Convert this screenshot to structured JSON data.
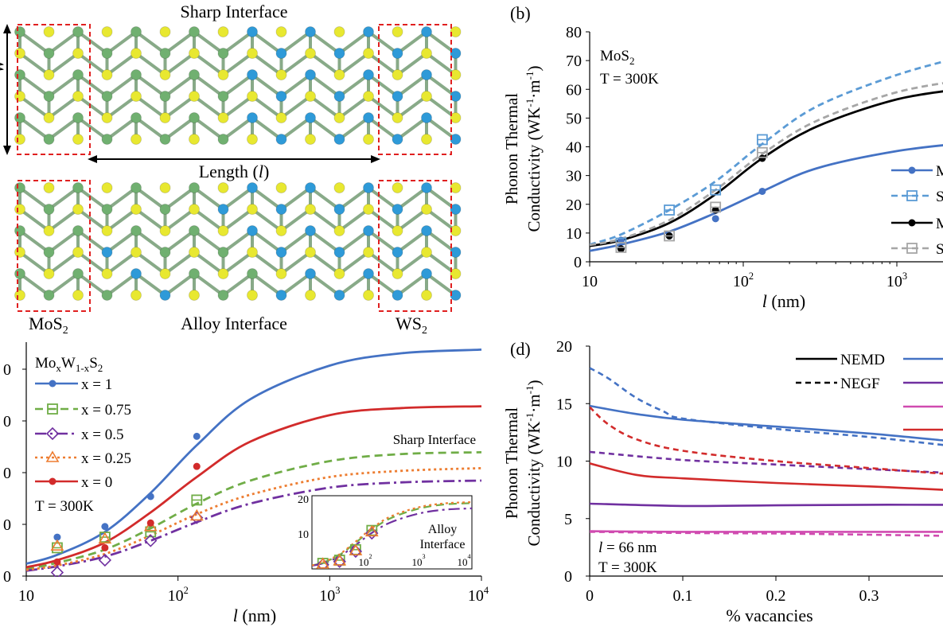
{
  "colors": {
    "blue": "#4472C4",
    "light_blue": "#5B9BD5",
    "red": "#D22B2B",
    "green": "#70AD47",
    "purple": "#7030A0",
    "orange": "#ED7D31",
    "gray": "#A6A6A6",
    "pink": "#D04BB0",
    "mo_atom": "#70B070",
    "w_atom": "#2E9AD8",
    "s_atom": "#E8E830",
    "box": "#E02020"
  },
  "panel_a": {
    "title_sharp": "Sharp Interface",
    "title_alloy": "Alloy Interface",
    "width_label": "W",
    "length_label_pre": "Length (",
    "length_label_var": "l",
    "length_label_post": ")",
    "mos2_base": "MoS",
    "mos2_sub": "2",
    "ws2_base": "WS",
    "ws2_sub": "2"
  },
  "chart_data": [
    {
      "id": "b",
      "panel_label": "(b)",
      "type": "line",
      "xscale": "log",
      "xlim": [
        10,
        3000
      ],
      "ylim": [
        0,
        80
      ],
      "xticks": [
        "10",
        "10",
        "10"
      ],
      "xtick_exps": [
        "",
        "2",
        "3"
      ],
      "yticks": [
        "0",
        "10",
        "20",
        "30",
        "40",
        "50",
        "60",
        "70",
        "80"
      ],
      "ylabel_line1": "Phonon Thermal",
      "ylabel_line2": "Conductivity (WK",
      "ylabel_sup1": "-1",
      "ylabel_mid": "·m",
      "ylabel_sup2": "-1",
      "ylabel_end": ")",
      "xlabel_var": "l",
      "xlabel_unit": " (nm)",
      "annot_material_base": "MoS",
      "annot_material_sub": "2",
      "annot_temp": "T = 300K",
      "legend_labels": [
        "M",
        "S",
        "M",
        "S"
      ],
      "series": [
        {
          "style": "blue_solid",
          "x": [
            10,
            16,
            33,
            66,
            133,
            300,
            1000,
            3000
          ],
          "y": [
            3.8,
            6,
            10.5,
            17,
            24.5,
            32.5,
            38.5,
            41.5
          ]
        },
        {
          "style": "lightblue_dash",
          "x": [
            10,
            16,
            33,
            66,
            133,
            300,
            1000,
            3000
          ],
          "y": [
            6,
            9.5,
            18,
            28,
            41,
            54,
            65,
            72
          ]
        },
        {
          "style": "black_solid",
          "x": [
            10,
            16,
            33,
            66,
            133,
            300,
            1000,
            3000
          ],
          "y": [
            5.5,
            7.5,
            13.5,
            23.5,
            36,
            47,
            56.5,
            60.5
          ]
        },
        {
          "style": "gray_dash",
          "x": [
            10,
            16,
            33,
            66,
            133,
            300,
            1000,
            3000
          ],
          "y": [
            5.8,
            8,
            14.5,
            25,
            37.5,
            49,
            59,
            63.5
          ]
        }
      ],
      "markers": [
        {
          "style": "blue_dot",
          "x": [
            16,
            33,
            66,
            133
          ],
          "y": [
            7.5,
            9,
            15,
            24.5
          ]
        },
        {
          "style": "lightblue_sq",
          "x": [
            16,
            33,
            66,
            133
          ],
          "y": [
            6.5,
            18,
            25,
            42.5
          ]
        },
        {
          "style": "black_dot",
          "x": [
            16,
            33,
            66,
            133
          ],
          "y": [
            4.5,
            9,
            18,
            36
          ]
        },
        {
          "style": "gray_sq",
          "x": [
            16,
            33,
            66,
            133
          ],
          "y": [
            5,
            9,
            19,
            38
          ]
        }
      ]
    },
    {
      "id": "c",
      "type": "line",
      "xscale": "log",
      "xlim": [
        10,
        10000
      ],
      "ylim": [
        0,
        13
      ],
      "xticks": [
        "10",
        "10",
        "10",
        "10"
      ],
      "xtick_exps": [
        "",
        "2",
        "3",
        "4"
      ],
      "yticks": [
        "0",
        "0",
        "0",
        "0",
        "0"
      ],
      "xlabel_var": "l",
      "xlabel_unit": " (nm)",
      "annot_material": "Mo",
      "annot_x": "x",
      "annot_w": "W",
      "annot_1mx": "1-x",
      "annot_s": "S",
      "annot_2": "2",
      "annot_temp": "T = 300K",
      "annot_sharp": "Sharp Interface",
      "legend_labels": [
        "x = 1",
        "x = 0.75",
        "x = 0.5",
        "x = 0.25",
        "x = 0"
      ],
      "series": [
        {
          "name": "x = 1",
          "x": [
            10,
            16,
            33,
            66,
            133,
            300,
            1000,
            3000,
            10000
          ],
          "y": [
            0.7,
            1.2,
            2.5,
            4.7,
            7.4,
            10,
            11.9,
            12.6,
            12.8
          ]
        },
        {
          "name": "x = 0.75",
          "x": [
            10,
            16,
            33,
            66,
            133,
            300,
            1000,
            3000,
            10000
          ],
          "y": [
            0.4,
            0.75,
            1.5,
            2.7,
            4.1,
            5.4,
            6.5,
            6.9,
            7.0
          ]
        },
        {
          "name": "x = 0.5",
          "x": [
            10,
            16,
            33,
            66,
            133,
            300,
            1000,
            3000,
            10000
          ],
          "y": [
            0.3,
            0.55,
            1.1,
            2.0,
            3.05,
            4.1,
            5.0,
            5.3,
            5.4
          ]
        },
        {
          "name": "x = 0.25",
          "x": [
            10,
            16,
            33,
            66,
            133,
            300,
            1000,
            3000,
            10000
          ],
          "y": [
            0.35,
            0.6,
            1.25,
            2.3,
            3.5,
            4.6,
            5.6,
            5.95,
            6.1
          ]
        },
        {
          "name": "x = 0",
          "x": [
            10,
            16,
            33,
            66,
            133,
            300,
            1000,
            3000,
            10000
          ],
          "y": [
            0.5,
            0.9,
            1.9,
            3.6,
            5.6,
            7.6,
            9.1,
            9.5,
            9.6
          ]
        }
      ],
      "markers": [
        {
          "name": "x = 1",
          "x": [
            16,
            33,
            66,
            133
          ],
          "y": [
            2.2,
            2.8,
            4.5,
            7.9
          ]
        },
        {
          "name": "x = 0.75",
          "x": [
            16,
            33,
            66,
            133
          ],
          "y": [
            1.6,
            2.2,
            2.5,
            4.3
          ]
        },
        {
          "name": "x = 0.5",
          "x": [
            16,
            33,
            66,
            133
          ],
          "y": [
            0.2,
            0.9,
            2.0,
            3.3
          ]
        },
        {
          "name": "x = 0.25",
          "x": [
            16,
            33,
            66,
            133
          ],
          "y": [
            1.7,
            2.1,
            2.8,
            3.4
          ]
        },
        {
          "name": "x = 0",
          "x": [
            16,
            33,
            66,
            133
          ],
          "y": [
            0.8,
            1.6,
            3.0,
            6.2
          ]
        }
      ],
      "inset": {
        "xlim": [
          10,
          10000
        ],
        "ylim": [
          0,
          20
        ],
        "yticks": [
          "10",
          "20"
        ],
        "xticks": [
          "10",
          "10",
          "10"
        ],
        "xtick_exps": [
          "2",
          "3",
          "4"
        ],
        "label_line1": "Alloy",
        "label_line2": "Interface",
        "series": [
          {
            "name": "x = 0.75",
            "x": [
              10,
              16,
              33,
              66,
              133,
              300,
              1000,
              3000,
              10000
            ],
            "y": [
              1,
              1.8,
              4,
              7.5,
              11.2,
              14.5,
              17.2,
              18.4,
              18.8
            ]
          },
          {
            "name": "x = 0.5",
            "x": [
              10,
              16,
              33,
              66,
              133,
              300,
              1000,
              3000,
              10000
            ],
            "y": [
              0.9,
              1.6,
              3.6,
              6.8,
              10.3,
              13.3,
              15.8,
              16.9,
              17.3
            ]
          },
          {
            "name": "x = 0.25",
            "x": [
              10,
              16,
              33,
              66,
              133,
              300,
              1000,
              3000,
              10000
            ],
            "y": [
              1,
              1.9,
              4.2,
              7.8,
              11.6,
              15,
              17.6,
              18.7,
              19.1
            ]
          }
        ],
        "markers": [
          {
            "name": "x = 0.75",
            "x": [
              16,
              33,
              66,
              133
            ],
            "y": [
              1.6,
              2.5,
              5.5,
              11
            ]
          },
          {
            "name": "x = 0.5",
            "x": [
              16,
              33,
              66,
              133
            ],
            "y": [
              1.2,
              2.1,
              5.0,
              10.2
            ]
          },
          {
            "name": "x = 0.25",
            "x": [
              16,
              33,
              66,
              133
            ],
            "y": [
              1.4,
              2.3,
              5.2,
              10.6
            ]
          }
        ]
      }
    },
    {
      "id": "d",
      "panel_label": "(d)",
      "type": "line",
      "xscale": "linear",
      "xlim": [
        0,
        0.38
      ],
      "ylim": [
        0,
        20
      ],
      "xticks": [
        "0",
        "0.1",
        "0.2",
        "0.3"
      ],
      "yticks": [
        "0",
        "5",
        "10",
        "15",
        "20"
      ],
      "ylabel_line1": "Phonon Thermal",
      "ylabel_line2": "Conductivity (WK",
      "ylabel_sup1": "-1",
      "ylabel_mid": "·m",
      "ylabel_sup2": "-1",
      "ylabel_end": ")",
      "xlabel": "% vacancies",
      "annot_l_var": "l",
      "annot_l": " = 66 nm",
      "annot_temp": "T = 300K",
      "legend_labels": [
        "NEMD",
        "NEGF"
      ],
      "series": [
        {
          "style": "blue_solid",
          "x": [
            0,
            0.05,
            0.1,
            0.2,
            0.3,
            0.38
          ],
          "y": [
            14.8,
            14.1,
            13.6,
            13.0,
            12.4,
            11.8
          ]
        },
        {
          "style": "blue_dash",
          "x": [
            0,
            0.02,
            0.05,
            0.08,
            0.1,
            0.2,
            0.3,
            0.38
          ],
          "y": [
            18.1,
            17.2,
            15.5,
            14.3,
            13.7,
            12.8,
            12.1,
            11.4
          ]
        },
        {
          "style": "purple_solid",
          "x": [
            0,
            0.1,
            0.2,
            0.3,
            0.38
          ],
          "y": [
            6.3,
            6.1,
            6.15,
            6.2,
            6.2
          ]
        },
        {
          "style": "purple_dash",
          "x": [
            0,
            0.1,
            0.2,
            0.3,
            0.38
          ],
          "y": [
            10.8,
            10.1,
            9.7,
            9.3,
            9.0
          ]
        },
        {
          "style": "pink_solid",
          "x": [
            0,
            0.1,
            0.2,
            0.3,
            0.38
          ],
          "y": [
            3.9,
            3.85,
            3.85,
            3.85,
            3.85
          ]
        },
        {
          "style": "pink_dash",
          "x": [
            0,
            0.1,
            0.2,
            0.3,
            0.38
          ],
          "y": [
            3.85,
            3.75,
            3.7,
            3.6,
            3.5
          ]
        },
        {
          "style": "red_solid",
          "x": [
            0,
            0.05,
            0.1,
            0.2,
            0.3,
            0.38
          ],
          "y": [
            9.8,
            8.8,
            8.5,
            8.1,
            7.8,
            7.5
          ]
        },
        {
          "style": "red_dash",
          "x": [
            0,
            0.02,
            0.05,
            0.1,
            0.2,
            0.3,
            0.38
          ],
          "y": [
            14.7,
            13.2,
            11.9,
            10.9,
            10.0,
            9.4,
            8.9
          ]
        }
      ]
    }
  ]
}
